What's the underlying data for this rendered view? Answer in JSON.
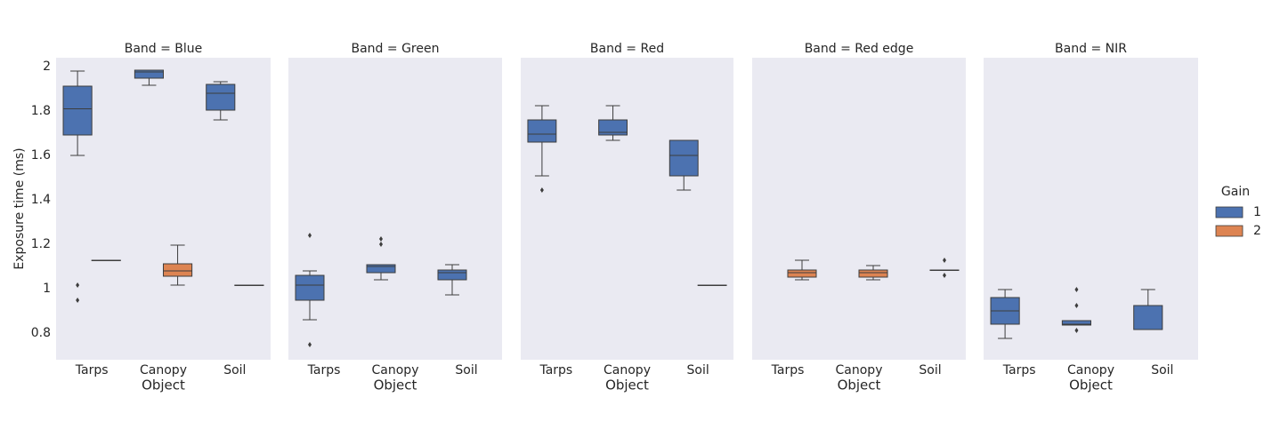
{
  "chart_data": [
    {
      "type": "box",
      "title": "Band = Blue",
      "xlabel": "Object",
      "ylabel": "Exposure time (ms)",
      "legend_title": "Gain",
      "ylim": [
        0.68,
        2.04
      ],
      "yticks": [
        0.8,
        1.0,
        1.2,
        1.4,
        1.6,
        1.8,
        2.0
      ],
      "categories": [
        "Tarps",
        "Canopy",
        "Soil"
      ],
      "series": [
        {
          "name": "1",
          "color": "#4c72b0",
          "min": [
            1.6,
            1.916,
            1.76
          ],
          "q1": [
            1.692,
            1.948,
            1.804
          ],
          "median": [
            1.81,
            1.976,
            1.88
          ],
          "q3": [
            1.912,
            1.984,
            1.92
          ],
          "max": [
            1.98,
            1.984,
            1.932
          ],
          "outliers": [
            [
              1.016,
              0.948
            ],
            [],
            []
          ]
        },
        {
          "name": "2",
          "color": "#dd8452",
          "min": [
            1.128,
            1.016,
            1.016
          ],
          "q1": [
            1.128,
            1.056,
            1.016
          ],
          "median": [
            1.128,
            1.08,
            1.016
          ],
          "q3": [
            1.128,
            1.112,
            1.016
          ],
          "max": [
            1.128,
            1.196,
            1.016
          ],
          "outliers": [
            [],
            [],
            []
          ]
        }
      ]
    },
    {
      "type": "box",
      "title": "Band = Green",
      "xlabel": "Object",
      "categories": [
        "Tarps",
        "Canopy",
        "Soil"
      ],
      "series": [
        {
          "color": "#4c72b0",
          "min": [
            0.86,
            1.04,
            0.972
          ],
          "q1": [
            0.948,
            1.072,
            1.04
          ],
          "median": [
            1.016,
            1.1,
            1.072
          ],
          "q3": [
            1.06,
            1.108,
            1.084
          ],
          "max": [
            1.08,
            1.108,
            1.108
          ],
          "outliers": [
            [
              1.24,
              0.748
            ],
            [
              1.224,
              1.2
            ],
            []
          ]
        }
      ]
    },
    {
      "type": "box",
      "title": "Band = Red",
      "xlabel": "Object",
      "categories": [
        "Tarps",
        "Canopy",
        "Soil"
      ],
      "series": [
        {
          "color": "#4c72b0",
          "min": [
            1.508,
            1.668,
            1.444
          ],
          "q1": [
            1.66,
            1.692,
            1.508
          ],
          "median": [
            1.696,
            1.704,
            1.6
          ],
          "q3": [
            1.76,
            1.76,
            1.668
          ],
          "max": [
            1.824,
            1.824,
            1.668
          ],
          "outliers": [
            [
              1.444
            ],
            [],
            []
          ]
        },
        {
          "color": "#dd8452",
          "min": [
            null,
            null,
            1.016
          ],
          "q1": [
            null,
            null,
            1.016
          ],
          "median": [
            null,
            null,
            1.016
          ],
          "q3": [
            null,
            null,
            1.016
          ],
          "max": [
            null,
            null,
            1.016
          ],
          "outliers": [
            [],
            [],
            []
          ]
        }
      ]
    },
    {
      "type": "box",
      "title": "Band = Red edge",
      "xlabel": "Object",
      "categories": [
        "Tarps",
        "Canopy",
        "Soil"
      ],
      "series": [
        {
          "color": "#dd8452",
          "min": [
            1.04,
            1.04,
            1.084
          ],
          "q1": [
            1.052,
            1.052,
            1.084
          ],
          "median": [
            1.072,
            1.072,
            1.084
          ],
          "q3": [
            1.084,
            1.084,
            1.084
          ],
          "max": [
            1.128,
            1.104,
            1.084
          ],
          "outliers": [
            [],
            [],
            [
              1.128,
              1.06
            ]
          ]
        }
      ]
    },
    {
      "type": "box",
      "title": "Band = NIR",
      "xlabel": "Object",
      "categories": [
        "Tarps",
        "Canopy",
        "Soil"
      ],
      "series": [
        {
          "color": "#4c72b0",
          "min": [
            0.776,
            0.836,
            0.816
          ],
          "q1": [
            0.84,
            0.836,
            0.816
          ],
          "median": [
            0.9,
            0.84,
            0.816
          ],
          "q3": [
            0.96,
            0.856,
            0.924
          ],
          "max": [
            0.996,
            0.856,
            0.996
          ],
          "outliers": [
            [],
            [
              0.996,
              0.924,
              0.812
            ],
            []
          ]
        }
      ]
    }
  ]
}
